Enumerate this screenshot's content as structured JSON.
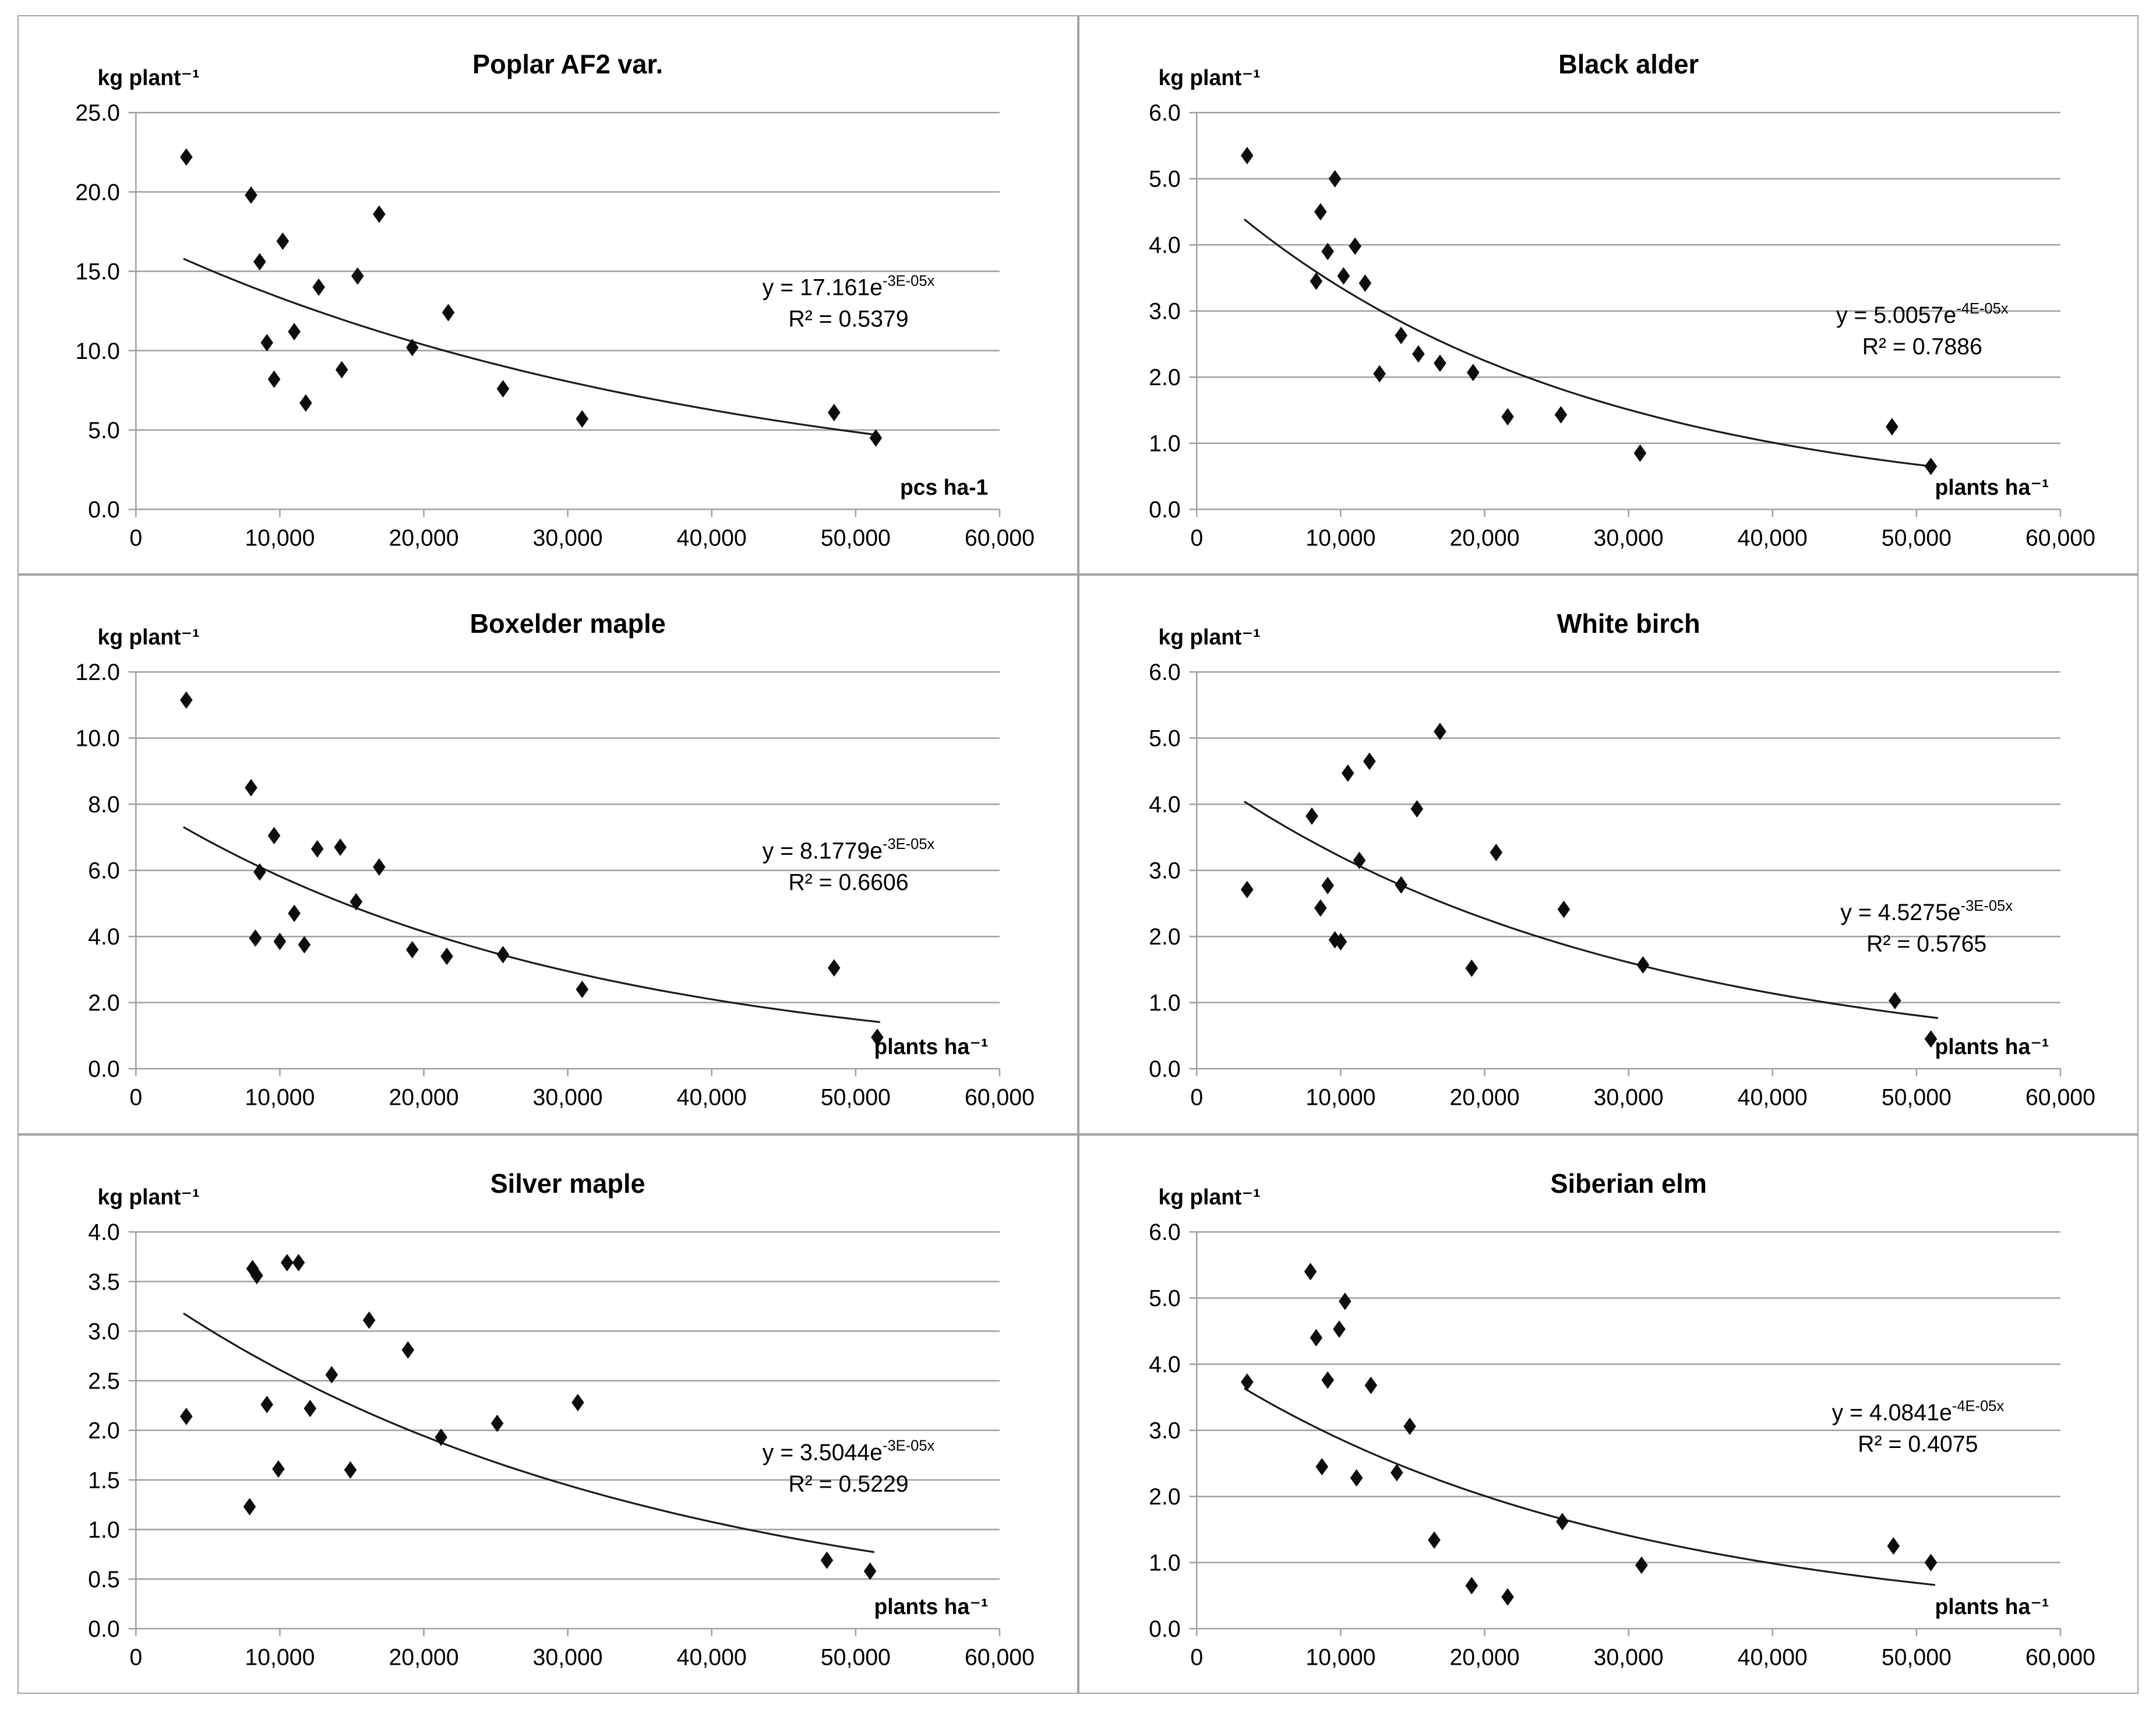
{
  "figure": {
    "background_color": "#ffffff",
    "panel_border_color": "#a3a3a3",
    "gridline_color": "#a0a0a0",
    "marker_color": "#0d0d0d",
    "trendline_color": "#1a1a1a",
    "text_color": "#000000"
  },
  "chart_data": [
    {
      "type": "scatter",
      "title": "Poplar AF2 var.",
      "ylabel": "kg plant⁻¹",
      "xlabel": "pcs ha-1",
      "equation_prefix": "y = 17.161e",
      "equation_exponent": "-3E-05x",
      "r2_text": "R² = 0.5379",
      "xlim": [
        0,
        60000
      ],
      "ylim": [
        0,
        25
      ],
      "xtick_labels": [
        "0",
        "10,000",
        "20,000",
        "30,000",
        "40,000",
        "50,000",
        "60,000"
      ],
      "ytick_labels": [
        "0.0",
        "5.0",
        "10.0",
        "15.0",
        "20.0",
        "25.0"
      ],
      "grid": "horizontal",
      "legend": "none",
      "eq_pos": [
        0.825,
        0.46
      ],
      "trendline": {
        "a": 17.161,
        "b": -2.52e-05,
        "x_start": 3300,
        "x_end": 51700
      },
      "points": [
        [
          3500,
          22.2
        ],
        [
          8000,
          19.8
        ],
        [
          8600,
          15.6
        ],
        [
          9100,
          10.5
        ],
        [
          9600,
          8.2
        ],
        [
          10200,
          16.9
        ],
        [
          11000,
          11.2
        ],
        [
          11800,
          6.7
        ],
        [
          12700,
          14.0
        ],
        [
          14300,
          8.8
        ],
        [
          15400,
          14.7
        ],
        [
          16900,
          18.6
        ],
        [
          19200,
          10.2
        ],
        [
          21700,
          12.4
        ],
        [
          25500,
          7.6
        ],
        [
          31000,
          5.7
        ],
        [
          48500,
          6.1
        ],
        [
          51400,
          4.5
        ]
      ]
    },
    {
      "type": "scatter",
      "title": "Black alder",
      "ylabel": "kg plant⁻¹",
      "xlabel": "plants ha⁻¹",
      "equation_prefix": "y = 5.0057e",
      "equation_exponent": "-4E-05x",
      "r2_text": "R² = 0.7886",
      "xlim": [
        0,
        60000
      ],
      "ylim": [
        0,
        6
      ],
      "xtick_labels": [
        "0",
        "10,000",
        "20,000",
        "30,000",
        "40,000",
        "50,000",
        "60,000"
      ],
      "ytick_labels": [
        "0.0",
        "1.0",
        "2.0",
        "3.0",
        "4.0",
        "5.0",
        "6.0"
      ],
      "grid": "horizontal",
      "legend": "none",
      "eq_pos": [
        0.84,
        0.53
      ],
      "trendline": {
        "a": 5.0057,
        "b": -4e-05,
        "x_start": 3300,
        "x_end": 51200
      },
      "points": [
        [
          3500,
          5.35
        ],
        [
          8300,
          3.45
        ],
        [
          8600,
          4.5
        ],
        [
          9100,
          3.9
        ],
        [
          9600,
          5.0
        ],
        [
          10200,
          3.53
        ],
        [
          11000,
          3.98
        ],
        [
          11700,
          3.42
        ],
        [
          12700,
          2.05
        ],
        [
          14200,
          2.63
        ],
        [
          15400,
          2.35
        ],
        [
          16900,
          2.21
        ],
        [
          19200,
          2.07
        ],
        [
          21600,
          1.4
        ],
        [
          25300,
          1.43
        ],
        [
          30800,
          0.85
        ],
        [
          48300,
          1.25
        ],
        [
          51000,
          0.65
        ]
      ]
    },
    {
      "type": "scatter",
      "title": "Boxelder maple",
      "ylabel": "kg plant⁻¹",
      "xlabel": "plants ha⁻¹",
      "equation_prefix": "y = 8.1779e",
      "equation_exponent": "-3E-05x",
      "r2_text": "R² = 0.6606",
      "xlim": [
        0,
        60000
      ],
      "ylim": [
        0,
        12
      ],
      "xtick_labels": [
        "0",
        "10,000",
        "20,000",
        "30,000",
        "40,000",
        "50,000",
        "60,000"
      ],
      "ytick_labels": [
        "0.0",
        "2.0",
        "4.0",
        "6.0",
        "8.0",
        "10.0",
        "12.0"
      ],
      "grid": "horizontal",
      "legend": "none",
      "eq_pos": [
        0.825,
        0.47
      ],
      "trendline": {
        "a": 8.1779,
        "b": -3.4e-05,
        "x_start": 3300,
        "x_end": 51700
      },
      "points": [
        [
          3500,
          11.15
        ],
        [
          8000,
          8.5
        ],
        [
          8300,
          3.95
        ],
        [
          8600,
          5.95
        ],
        [
          9600,
          7.05
        ],
        [
          10000,
          3.85
        ],
        [
          11000,
          4.7
        ],
        [
          11700,
          3.75
        ],
        [
          12600,
          6.65
        ],
        [
          14200,
          6.7
        ],
        [
          15300,
          5.05
        ],
        [
          16900,
          6.1
        ],
        [
          19200,
          3.6
        ],
        [
          21600,
          3.4
        ],
        [
          25500,
          3.45
        ],
        [
          31000,
          2.4
        ],
        [
          48500,
          3.05
        ],
        [
          51500,
          0.95
        ]
      ]
    },
    {
      "type": "scatter",
      "title": "White birch",
      "ylabel": "kg plant⁻¹",
      "xlabel": "plants ha⁻¹",
      "equation_prefix": "y = 4.5275e",
      "equation_exponent": "-3E-05x",
      "r2_text": "R² = 0.5765",
      "xlim": [
        0,
        60000
      ],
      "ylim": [
        0,
        6
      ],
      "xtick_labels": [
        "0",
        "10,000",
        "20,000",
        "30,000",
        "40,000",
        "50,000",
        "60,000"
      ],
      "ytick_labels": [
        "0.0",
        "1.0",
        "2.0",
        "3.0",
        "4.0",
        "5.0",
        "6.0"
      ],
      "grid": "horizontal",
      "legend": "none",
      "eq_pos": [
        0.845,
        0.625
      ],
      "trendline": {
        "a": 4.5275,
        "b": -3.45e-05,
        "x_start": 3300,
        "x_end": 51500
      },
      "points": [
        [
          3500,
          2.71
        ],
        [
          8000,
          3.82
        ],
        [
          8600,
          2.43
        ],
        [
          9100,
          2.77
        ],
        [
          9600,
          1.95
        ],
        [
          10000,
          1.92
        ],
        [
          10500,
          4.47
        ],
        [
          11300,
          3.15
        ],
        [
          12000,
          4.65
        ],
        [
          14200,
          2.78
        ],
        [
          15300,
          3.93
        ],
        [
          16900,
          5.1
        ],
        [
          19100,
          1.52
        ],
        [
          20800,
          3.27
        ],
        [
          25500,
          2.41
        ],
        [
          31000,
          1.57
        ],
        [
          48500,
          1.03
        ],
        [
          51000,
          0.45
        ]
      ]
    },
    {
      "type": "scatter",
      "title": "Silver maple",
      "ylabel": "kg plant⁻¹",
      "xlabel": "plants ha⁻¹",
      "equation_prefix": "y = 3.5044e",
      "equation_exponent": "-3E-05x",
      "r2_text": "R² = 0.5229",
      "xlim": [
        0,
        60000
      ],
      "ylim": [
        0,
        4
      ],
      "xtick_labels": [
        "0",
        "10,000",
        "20,000",
        "30,000",
        "40,000",
        "50,000",
        "60,000"
      ],
      "ytick_labels": [
        "0.0",
        "0.5",
        "1.0",
        "1.5",
        "2.0",
        "2.5",
        "3.0",
        "3.5",
        "4.0"
      ],
      "grid": "horizontal",
      "legend": "none",
      "eq_pos": [
        0.825,
        0.575
      ],
      "trendline": {
        "a": 3.5044,
        "b": -2.95e-05,
        "x_start": 3300,
        "x_end": 51300
      },
      "points": [
        [
          3500,
          2.14
        ],
        [
          7900,
          1.23
        ],
        [
          8100,
          3.63
        ],
        [
          8400,
          3.56
        ],
        [
          9100,
          2.26
        ],
        [
          9900,
          1.61
        ],
        [
          10500,
          3.69
        ],
        [
          11300,
          3.69
        ],
        [
          12100,
          2.22
        ],
        [
          13600,
          2.56
        ],
        [
          14900,
          1.6
        ],
        [
          16200,
          3.11
        ],
        [
          18900,
          2.81
        ],
        [
          21200,
          1.93
        ],
        [
          25100,
          2.07
        ],
        [
          30700,
          2.28
        ],
        [
          48000,
          0.69
        ],
        [
          51000,
          0.58
        ]
      ]
    },
    {
      "type": "scatter",
      "title": "Siberian elm",
      "ylabel": "kg plant⁻¹",
      "xlabel": "plants ha⁻¹",
      "equation_prefix": "y = 4.0841e",
      "equation_exponent": "-4E-05x",
      "r2_text": "R² = 0.4075",
      "xlim": [
        0,
        60000
      ],
      "ylim": [
        0,
        6
      ],
      "xtick_labels": [
        "0",
        "10,000",
        "20,000",
        "30,000",
        "40,000",
        "50,000",
        "60,000"
      ],
      "ytick_labels": [
        "0.0",
        "1.0",
        "2.0",
        "3.0",
        "4.0",
        "5.0",
        "6.0"
      ],
      "grid": "horizontal",
      "legend": "none",
      "eq_pos": [
        0.835,
        0.475
      ],
      "trendline": {
        "a": 4.0841,
        "b": -3.55e-05,
        "x_start": 3300,
        "x_end": 51300
      },
      "points": [
        [
          3500,
          3.73
        ],
        [
          7900,
          5.4
        ],
        [
          8300,
          4.4
        ],
        [
          8700,
          2.45
        ],
        [
          9100,
          3.76
        ],
        [
          9900,
          4.53
        ],
        [
          10300,
          4.95
        ],
        [
          11100,
          2.28
        ],
        [
          12100,
          3.68
        ],
        [
          13900,
          2.36
        ],
        [
          14800,
          3.06
        ],
        [
          16500,
          1.34
        ],
        [
          19100,
          0.65
        ],
        [
          21600,
          0.48
        ],
        [
          25400,
          1.62
        ],
        [
          30900,
          0.96
        ],
        [
          48400,
          1.25
        ],
        [
          51000,
          1.0
        ]
      ]
    }
  ]
}
